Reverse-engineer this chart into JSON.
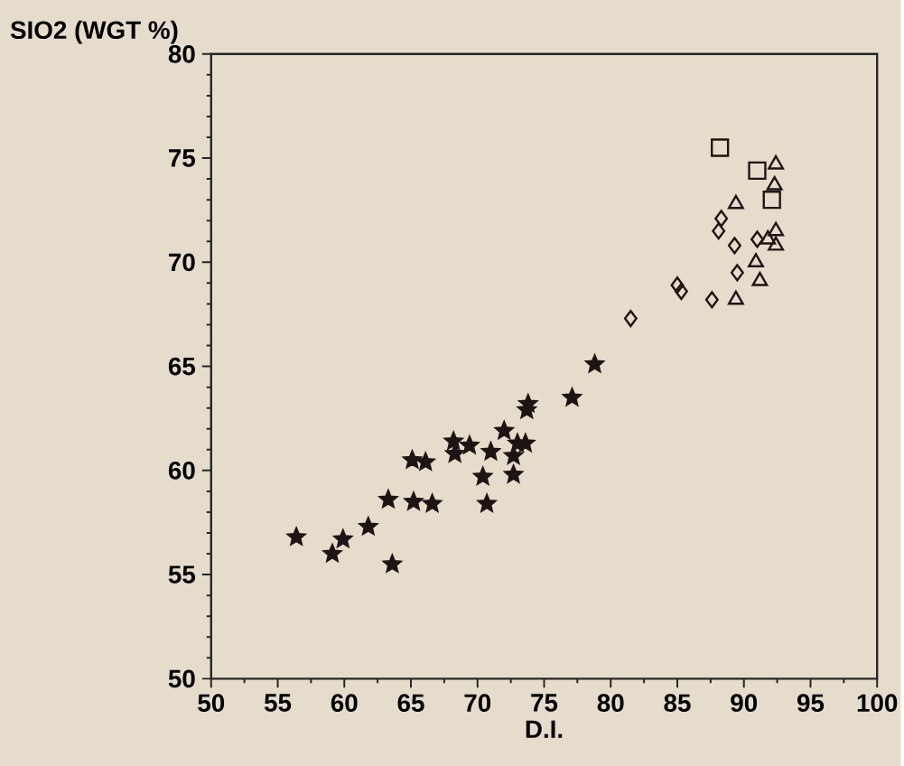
{
  "chart_data": {
    "type": "scatter",
    "xlabel": "D.I.",
    "ylabel": "SIO2 (WGT %)",
    "xlim": [
      50,
      100
    ],
    "ylim": [
      50,
      80
    ],
    "xticks": [
      50,
      55,
      60,
      65,
      70,
      75,
      80,
      85,
      90,
      95,
      100
    ],
    "yticks": [
      50,
      55,
      60,
      65,
      70,
      75,
      80
    ],
    "grid": false,
    "series": [
      {
        "color": "#1e1414",
        "marker": "star",
        "x": [
          78.8,
          77.1,
          73.8,
          73.7,
          72.0,
          73.0,
          73.6,
          71.0,
          72.7,
          69.4,
          68.2,
          68.3,
          65.1,
          66.1,
          70.4,
          72.7,
          63.3,
          65.2,
          66.6,
          70.7,
          61.8,
          56.4,
          59.9,
          59.1,
          63.6
        ],
        "values": [
          65.1,
          63.5,
          63.2,
          62.9,
          61.9,
          61.3,
          61.3,
          60.9,
          60.7,
          61.2,
          61.4,
          60.8,
          60.5,
          60.4,
          59.7,
          59.8,
          58.6,
          58.5,
          58.4,
          58.4,
          57.3,
          56.8,
          56.7,
          56.0,
          55.5
        ]
      },
      {
        "color": "#1e1414",
        "marker": "diamond",
        "x": [
          88.3,
          88.1,
          91.0,
          89.3,
          89.5,
          87.6,
          85.0,
          85.3,
          81.5
        ],
        "values": [
          72.1,
          71.5,
          71.1,
          70.8,
          69.5,
          68.2,
          68.9,
          68.6,
          67.3
        ]
      },
      {
        "color": "#1e1414",
        "marker": "triangle",
        "x": [
          92.4,
          92.3,
          89.4,
          92.4,
          91.8,
          92.4,
          90.9,
          91.2,
          89.4
        ],
        "values": [
          74.7,
          73.7,
          72.8,
          71.5,
          71.1,
          70.8,
          70.0,
          69.1,
          68.2
        ]
      },
      {
        "color": "#1e1414",
        "marker": "square",
        "x": [
          88.2,
          91.0,
          92.1
        ],
        "values": [
          75.5,
          74.4,
          73.0
        ]
      }
    ]
  }
}
